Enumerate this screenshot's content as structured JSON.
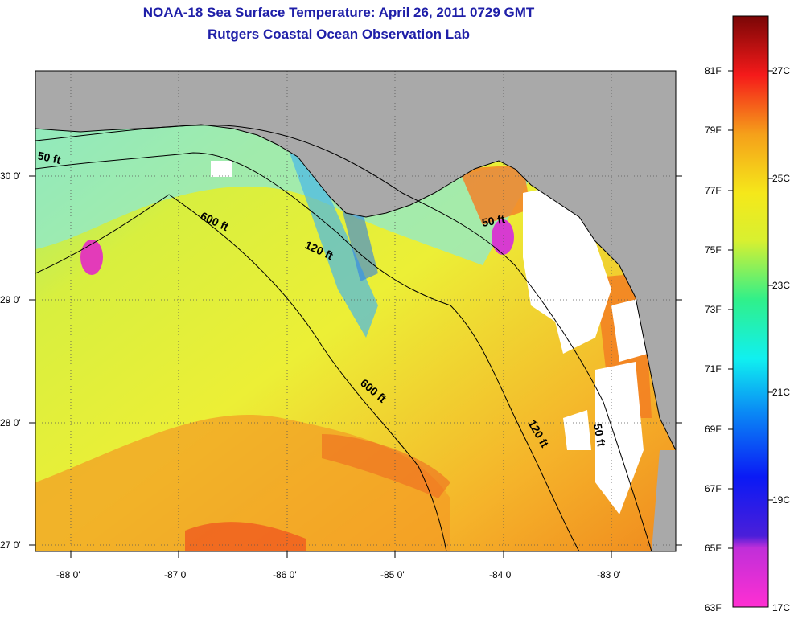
{
  "title": "NOAA-18 Sea Surface Temperature:  April 26, 2011 0729 GMT",
  "subtitle": "Rutgers Coastal Ocean Observation Lab",
  "map": {
    "lon_labels": [
      "-88 0'",
      "-87 0'",
      "-86 0'",
      "-85 0'",
      "-84 0'",
      "-83 0'"
    ],
    "lat_labels": [
      "30 0'",
      "29 0'",
      "28 0'",
      "27 0'"
    ],
    "contours": [
      {
        "label": "50 ft"
      },
      {
        "label": "600 ft"
      },
      {
        "label": "120 ft"
      },
      {
        "label": "50 ft"
      },
      {
        "label": "600 ft"
      },
      {
        "label": "120 ft"
      },
      {
        "label": "50 ft"
      }
    ],
    "colors": {
      "land": "#a9a9a9",
      "cloud": "#ffffff",
      "warm": "#f7a81f",
      "mid": "#e5f03a",
      "cool": "#7fe9a9",
      "cold": "#2fa9e9"
    }
  },
  "colorbar": {
    "fahrenheit": [
      "81F",
      "79F",
      "77F",
      "75F",
      "73F",
      "71F",
      "69F",
      "67F",
      "65F",
      "63F"
    ],
    "celsius": [
      "27C",
      "25C",
      "23C",
      "21C",
      "19C",
      "17C"
    ]
  }
}
